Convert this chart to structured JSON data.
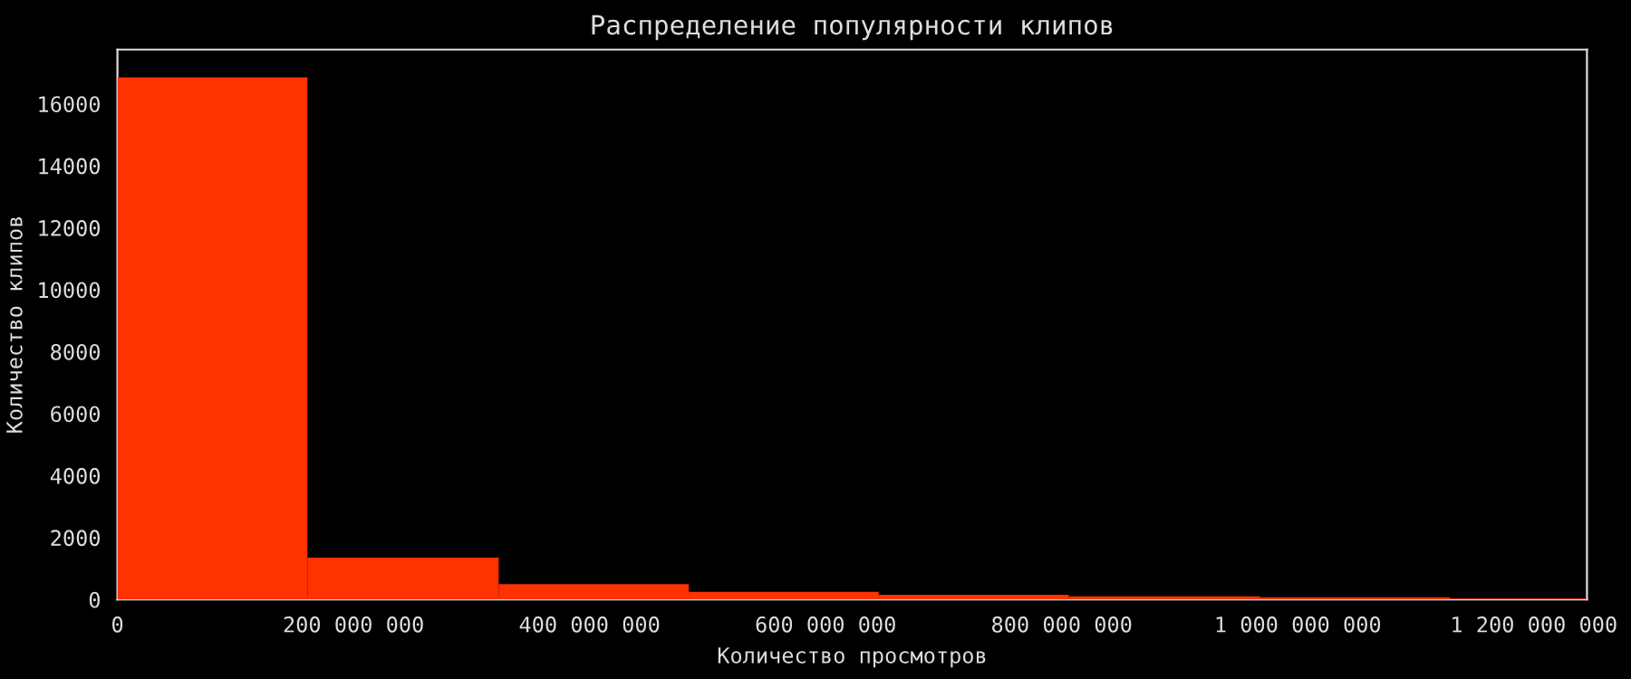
{
  "chart_data": {
    "type": "histogram",
    "title": "Распределение популярности клипов",
    "xlabel": "Количество просмотров",
    "ylabel": "Количество клипов",
    "bins": [
      0,
      161000000,
      323000000,
      484000000,
      645000000,
      806000000,
      968000000,
      1129000000,
      1245000000
    ],
    "values": [
      16850,
      1350,
      500,
      250,
      150,
      100,
      70,
      40
    ],
    "color": "#ff3300",
    "xlim": [
      0,
      1245000000
    ],
    "ylim": [
      0,
      17750
    ],
    "xticks": [
      0,
      {
        "value": 200000000,
        "label": "200 000 000"
      },
      {
        "value": 400000000,
        "label": "400 000 000"
      },
      {
        "value": 600000000,
        "label": "600 000 000"
      },
      {
        "value": 800000000,
        "label": "800 000 000"
      },
      {
        "value": 1000000000,
        "label": "1 000 000 000"
      },
      {
        "value": 1200000000,
        "label": "1 200 000 000"
      }
    ],
    "yticks": [
      0,
      2000,
      4000,
      6000,
      8000,
      10000,
      12000,
      14000,
      16000
    ],
    "grid": false,
    "legend": false
  }
}
